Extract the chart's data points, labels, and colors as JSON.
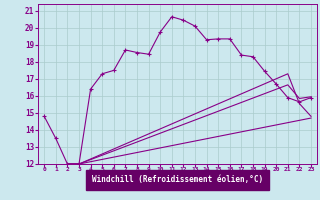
{
  "xlabel": "Windchill (Refroidissement éolien,°C)",
  "bg_color": "#cce8ee",
  "line_color": "#880088",
  "grid_color": "#aacccc",
  "xlabel_bg": "#660066",
  "xlabel_fg": "#ffffff",
  "xlim": [
    -0.5,
    23.5
  ],
  "ylim": [
    12,
    21.4
  ],
  "xticks": [
    0,
    1,
    2,
    3,
    4,
    5,
    6,
    7,
    8,
    9,
    10,
    11,
    12,
    13,
    14,
    15,
    16,
    17,
    18,
    19,
    20,
    21,
    22,
    23
  ],
  "yticks": [
    12,
    13,
    14,
    15,
    16,
    17,
    18,
    19,
    20,
    21
  ],
  "curve1_x": [
    0,
    1,
    2,
    3,
    4,
    5,
    6,
    7,
    8,
    9,
    10,
    11,
    12,
    13,
    14,
    15,
    16,
    17,
    18,
    19,
    20,
    21,
    22,
    23
  ],
  "curve1_y": [
    14.8,
    13.5,
    12.0,
    12.0,
    16.4,
    17.3,
    17.5,
    18.7,
    18.55,
    18.45,
    19.75,
    20.65,
    20.45,
    20.1,
    19.3,
    19.35,
    19.35,
    18.4,
    18.3,
    17.45,
    16.7,
    15.9,
    15.65,
    15.9
  ],
  "curve2_x": [
    2,
    3,
    23
  ],
  "curve2_y": [
    12.0,
    12.0,
    14.7
  ],
  "curve3_x": [
    2,
    3,
    21,
    22,
    23
  ],
  "curve3_y": [
    12.0,
    12.0,
    17.3,
    15.55,
    14.8
  ],
  "curve4_x": [
    2,
    3,
    21,
    22,
    23
  ],
  "curve4_y": [
    12.0,
    12.0,
    16.65,
    15.85,
    15.95
  ]
}
